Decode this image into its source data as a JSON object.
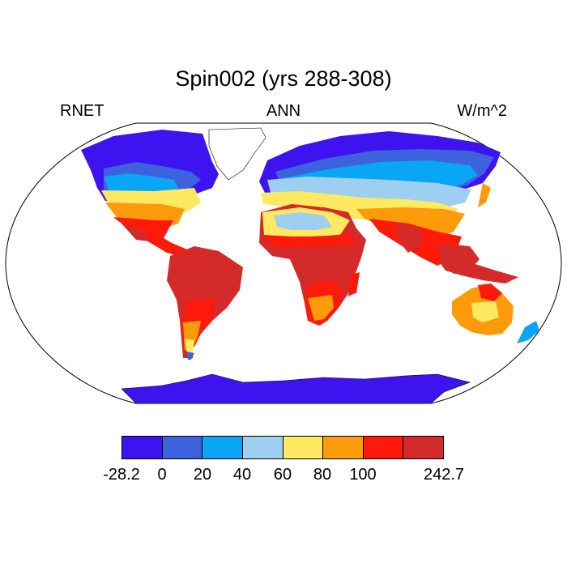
{
  "title": "Spin002 (yrs 288-308)",
  "left_label": "RNET",
  "center_label": "ANN",
  "right_label": "W/m^2",
  "colorbar": {
    "colors": [
      "#3d14f0",
      "#3c62dd",
      "#08a6f4",
      "#9ecff0",
      "#fde962",
      "#fd9b0a",
      "#fd1a0a",
      "#d42a2a"
    ],
    "tick_labels": [
      "-28.2",
      "0",
      "20",
      "40",
      "60",
      "80",
      "100",
      "242.7"
    ]
  }
}
